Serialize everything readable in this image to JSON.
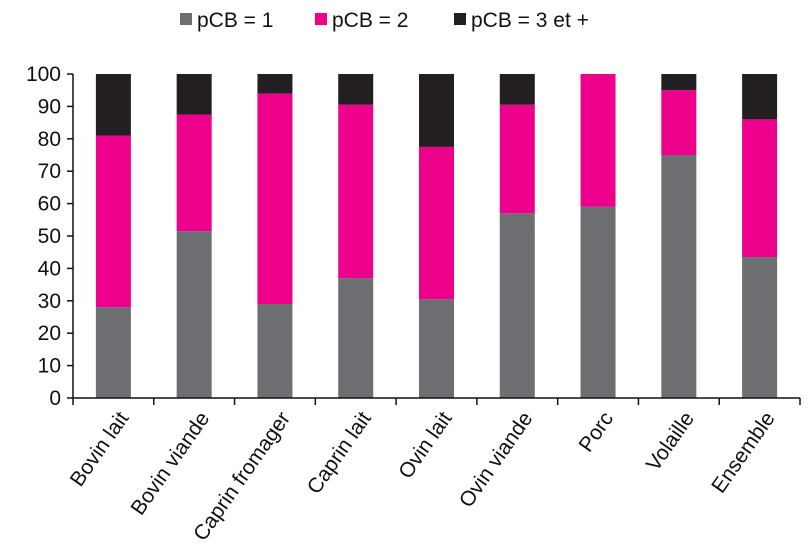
{
  "chart_data": {
    "type": "bar",
    "stacked": true,
    "categories": [
      "Bovin lait",
      "Bovin viande",
      "Caprin fromager",
      "Caprin lait",
      "Ovin lait",
      "Ovin viande",
      "Porc",
      "Volaille",
      "Ensemble"
    ],
    "series": [
      {
        "name": "pCB = 1",
        "color": "#6d6e71",
        "values": [
          28,
          51.5,
          29,
          37,
          30.5,
          57,
          59,
          75,
          43.5
        ]
      },
      {
        "name": "pCB = 2",
        "color": "#ec008c",
        "values": [
          53,
          36,
          65,
          53.5,
          47,
          33.5,
          41,
          20,
          42.5
        ]
      },
      {
        "name": "pCB = 3 et +",
        "color": "#231f20",
        "values": [
          19,
          12.5,
          6,
          9.5,
          22.5,
          9.5,
          0,
          5,
          14
        ]
      }
    ],
    "yticks": [
      0,
      10,
      20,
      30,
      40,
      50,
      60,
      70,
      80,
      90,
      100
    ],
    "ylim": [
      0,
      100
    ],
    "legend_position": "top",
    "grid": false
  }
}
